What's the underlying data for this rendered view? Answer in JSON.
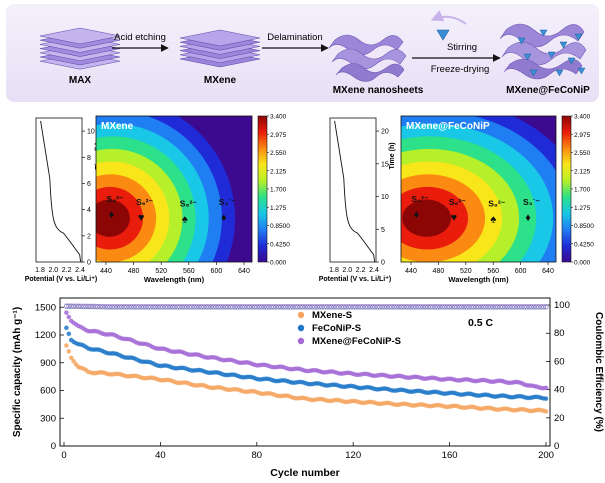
{
  "schematic": {
    "steps": [
      {
        "label": "MAX"
      },
      {
        "label": "MXene"
      },
      {
        "label": "MXene nanosheets"
      },
      {
        "label": "MXene@FeCoNiP"
      }
    ],
    "arrows": [
      {
        "label": "Acid etching"
      },
      {
        "label": "Delamination"
      },
      {
        "label": "Stirring",
        "label2": "Freeze-drying"
      }
    ]
  },
  "insitu": [
    {
      "title": "MXene",
      "time_axis": {
        "label": "Time (h)",
        "ticks": [
          "0",
          "2",
          "4",
          "6",
          "8",
          "10"
        ],
        "max": 11
      },
      "voltage_axis": {
        "label": "Potential (V vs. Li/Li⁺)",
        "ticks": [
          "1.8",
          "2.0",
          "2.2",
          "2.4"
        ]
      },
      "wavelength_axis": {
        "label": "Wavelength (nm)",
        "ticks": [
          "440",
          "480",
          "520",
          "560",
          "600",
          "640"
        ]
      },
      "species": [
        {
          "label": "S₄²⁻",
          "marker": "♦"
        },
        {
          "label": "S₆²⁻",
          "marker": "♥"
        },
        {
          "label": "S₈²⁻",
          "marker": "♠"
        },
        {
          "label": "S₃˙⁻",
          "marker": "♦"
        }
      ]
    },
    {
      "title": "MXene@FeCoNiP",
      "time_axis": {
        "label": "Time (h)",
        "ticks": [
          "0",
          "5",
          "10",
          "15",
          "20"
        ],
        "max": 22
      },
      "voltage_axis": {
        "label": "Potential (V vs. Li/Li⁺)",
        "ticks": [
          "1.8",
          "2.0",
          "2.2",
          "2.4"
        ]
      },
      "wavelength_axis": {
        "label": "Wavelength (nm)",
        "ticks": [
          "440",
          "480",
          "520",
          "560",
          "600",
          "640"
        ]
      },
      "species": [
        {
          "label": "S₄²⁻",
          "marker": "♦"
        },
        {
          "label": "S₆²⁻",
          "marker": "♥"
        },
        {
          "label": "S₈²⁻",
          "marker": "♠"
        },
        {
          "label": "S₃˙⁻",
          "marker": "♦"
        }
      ]
    }
  ],
  "colorbar": {
    "ticks": [
      "3.400",
      "2.975",
      "2.550",
      "2.125",
      "1.700",
      "1.275",
      "0.8500",
      "0.4250",
      "0.000"
    ],
    "stops": [
      "#3b0a8f",
      "#1f2bd6",
      "#1f7ef2",
      "#19c7e6",
      "#2de08a",
      "#b6f02a",
      "#f8e61a",
      "#fb8a12",
      "#ea1c0c",
      "#8c0606"
    ]
  },
  "chart_data": {
    "type": "scatter",
    "xlabel": "Cycle number",
    "ylabel": "Specific capacity (mAh g⁻¹)",
    "y2label": "Coulombic Efficiency (%)",
    "annotation": "0.5 C",
    "xlim": [
      0,
      200
    ],
    "ylim": [
      0,
      1600
    ],
    "y2lim": [
      0,
      105
    ],
    "xticks": [
      0,
      40,
      80,
      120,
      160,
      200
    ],
    "yticks": [
      0,
      300,
      600,
      900,
      1200,
      1500
    ],
    "y2ticks": [
      0,
      20,
      40,
      60,
      80,
      100
    ],
    "legend_position": "top-center",
    "series": [
      {
        "name": "MXene-S",
        "color": "#f5a45f",
        "capacity": [
          [
            1,
            1080
          ],
          [
            3,
            950
          ],
          [
            6,
            860
          ],
          [
            10,
            800
          ],
          [
            20,
            780
          ],
          [
            40,
            720
          ],
          [
            60,
            640
          ],
          [
            80,
            580
          ],
          [
            100,
            510
          ],
          [
            120,
            480
          ],
          [
            140,
            450
          ],
          [
            160,
            430
          ],
          [
            180,
            400
          ],
          [
            200,
            380
          ]
        ],
        "efficiency": [
          [
            1,
            99
          ],
          [
            20,
            98.5
          ],
          [
            100,
            98.5
          ],
          [
            200,
            98.5
          ]
        ]
      },
      {
        "name": "FeCoNiP-S",
        "color": "#1f77c8",
        "capacity": [
          [
            1,
            1270
          ],
          [
            3,
            1150
          ],
          [
            6,
            1100
          ],
          [
            10,
            1060
          ],
          [
            20,
            1000
          ],
          [
            40,
            870
          ],
          [
            60,
            800
          ],
          [
            80,
            730
          ],
          [
            100,
            680
          ],
          [
            120,
            640
          ],
          [
            140,
            600
          ],
          [
            160,
            570
          ],
          [
            180,
            540
          ],
          [
            200,
            520
          ]
        ],
        "efficiency": [
          [
            1,
            99
          ],
          [
            20,
            98.5
          ],
          [
            100,
            98.5
          ],
          [
            200,
            98.5
          ]
        ]
      },
      {
        "name": "MXene@FeCoNiP-S",
        "color": "#a36ad6",
        "capacity": [
          [
            1,
            1440
          ],
          [
            3,
            1360
          ],
          [
            6,
            1290
          ],
          [
            10,
            1250
          ],
          [
            20,
            1200
          ],
          [
            40,
            1050
          ],
          [
            60,
            960
          ],
          [
            80,
            880
          ],
          [
            100,
            820
          ],
          [
            120,
            780
          ],
          [
            140,
            750
          ],
          [
            160,
            720
          ],
          [
            180,
            700
          ],
          [
            190,
            680
          ],
          [
            195,
            640
          ],
          [
            200,
            630
          ]
        ],
        "efficiency": [
          [
            1,
            99.5
          ],
          [
            20,
            99
          ],
          [
            100,
            99
          ],
          [
            200,
            99
          ]
        ]
      }
    ]
  }
}
